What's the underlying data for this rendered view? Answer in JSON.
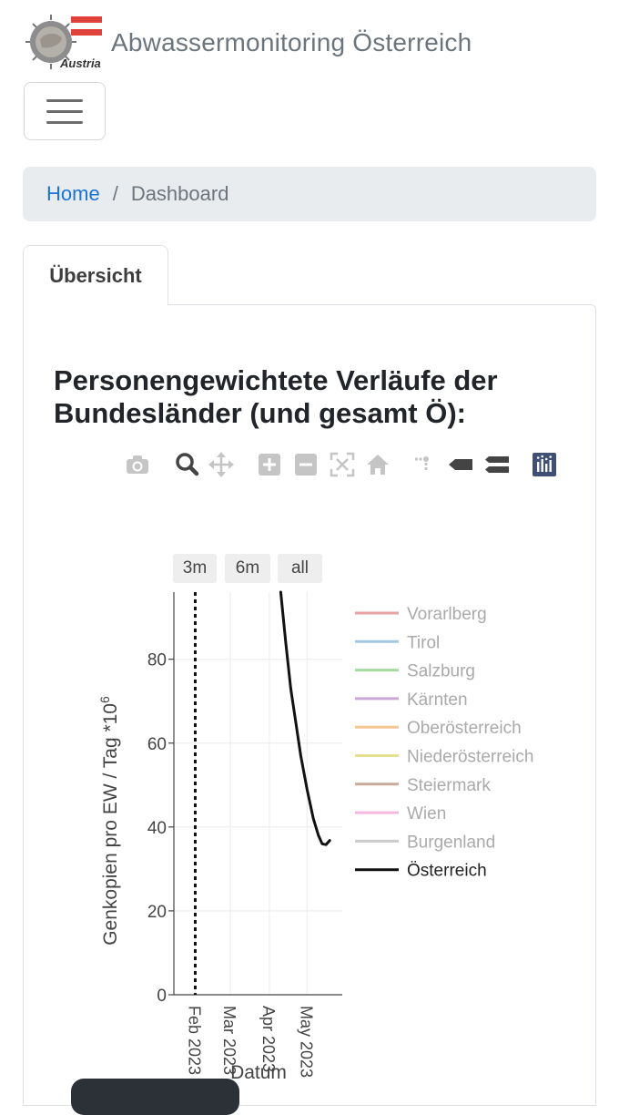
{
  "header": {
    "logo_caption": "Austria",
    "title": "Abwassermonitoring Österreich"
  },
  "nav": {
    "toggler_icon": "hamburger-icon"
  },
  "breadcrumb": {
    "home": "Home",
    "separator": "/",
    "current": "Dashboard"
  },
  "tabs": [
    {
      "label": "Übersicht",
      "active": true
    }
  ],
  "section": {
    "heading": "Personengewichtete Verläufe der Bundesländer (und gesamt Ö):"
  },
  "modebar": {
    "icons": [
      "camera-icon",
      "zoom-icon",
      "pan-icon",
      "zoom-in-icon",
      "zoom-out-icon",
      "autoscale-icon",
      "reset-axes-icon",
      "spike-lines-icon",
      "hover-closest-icon",
      "hover-compare-icon",
      "plotly-logo-icon"
    ]
  },
  "range_selector": [
    "3m",
    "6m",
    "all"
  ],
  "colors": {
    "accent_link": "#1a73d9",
    "flag_red": "#e0413b",
    "grid": "#eeeeee",
    "austria_line": "#111111"
  },
  "chart_data": {
    "type": "line",
    "xlabel": "Datum",
    "ylabel": "Genkopien pro EW / Tag *10",
    "ylabel_superscript": "6",
    "yticks": [
      0,
      20,
      40,
      60,
      80
    ],
    "ylim": [
      0,
      96
    ],
    "xticks": [
      {
        "date": "2023-02-01",
        "label": "Feb 2023"
      },
      {
        "date": "2023-03-01",
        "label": "Mar 2023"
      },
      {
        "date": "2023-04-01",
        "label": "Apr 2023"
      },
      {
        "date": "2023-05-01",
        "label": "May 2023"
      }
    ],
    "xlim": [
      "2023-01-15",
      "2023-05-29"
    ],
    "marker_line": {
      "date": "2023-02-01",
      "style": "dotted"
    },
    "grid": true,
    "legend_position": "right",
    "series": [
      {
        "name": "Vorarlberg",
        "color": "#e8a0a0",
        "visible": false
      },
      {
        "name": "Tirol",
        "color": "#a4c8e4",
        "visible": false
      },
      {
        "name": "Salzburg",
        "color": "#a6dba0",
        "visible": false
      },
      {
        "name": "Kärnten",
        "color": "#c9a8d8",
        "visible": false
      },
      {
        "name": "Oberösterreich",
        "color": "#f7c593",
        "visible": false
      },
      {
        "name": "Niederösterreich",
        "color": "#e6e08e",
        "visible": false
      },
      {
        "name": "Steiermark",
        "color": "#c8ab98",
        "visible": false
      },
      {
        "name": "Wien",
        "color": "#f5b8df",
        "visible": false
      },
      {
        "name": "Burgenland",
        "color": "#cccccc",
        "visible": false
      },
      {
        "name": "Österreich",
        "color": "#111111",
        "visible": true,
        "points": [
          [
            "2023-04-10",
            96
          ],
          [
            "2023-04-14",
            84
          ],
          [
            "2023-04-18",
            73
          ],
          [
            "2023-04-22",
            65
          ],
          [
            "2023-04-26",
            57
          ],
          [
            "2023-05-01",
            49
          ],
          [
            "2023-05-06",
            42
          ],
          [
            "2023-05-10",
            38
          ],
          [
            "2023-05-13",
            36
          ],
          [
            "2023-05-16",
            35.8
          ],
          [
            "2023-05-19",
            36.8
          ]
        ]
      }
    ]
  }
}
